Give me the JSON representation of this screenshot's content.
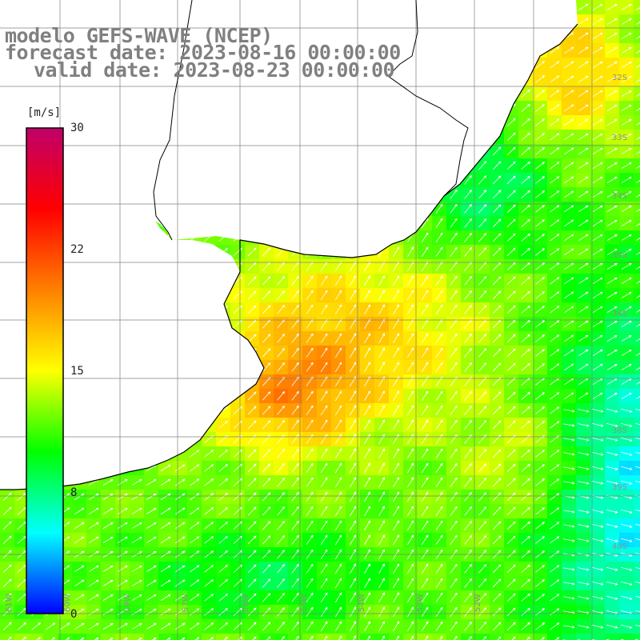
{
  "title": {
    "model": "modelo GEFS-WAVE (NCEP)",
    "forecast": "forecast date: 2023-08-16 00:00:00",
    "valid": "valid date: 2023-08-23 00:00:00"
  },
  "colorbar": {
    "units": "[m/s]",
    "ticks": [
      "30",
      "22",
      "15",
      "8",
      "0"
    ],
    "tick_values": [
      30,
      22,
      15,
      8,
      0
    ],
    "range": [
      0,
      30
    ],
    "colors": [
      "#0000ff",
      "#00ffff",
      "#00ff00",
      "#ffff00",
      "#ff8000",
      "#ff0000",
      "#c0006a"
    ]
  },
  "map": {
    "lat_labels": [
      "32S",
      "33S",
      "34S",
      "35S",
      "36S",
      "38S",
      "39S",
      "40S"
    ],
    "lon_labels": [
      "61W",
      "60W",
      "59W",
      "57W",
      "56W",
      "55W",
      "54W",
      "53W",
      "52W"
    ],
    "land_color": "#ffffff",
    "coast_color": "#000000",
    "grid_color": "#808080",
    "arrow_color": "#ffffff"
  }
}
